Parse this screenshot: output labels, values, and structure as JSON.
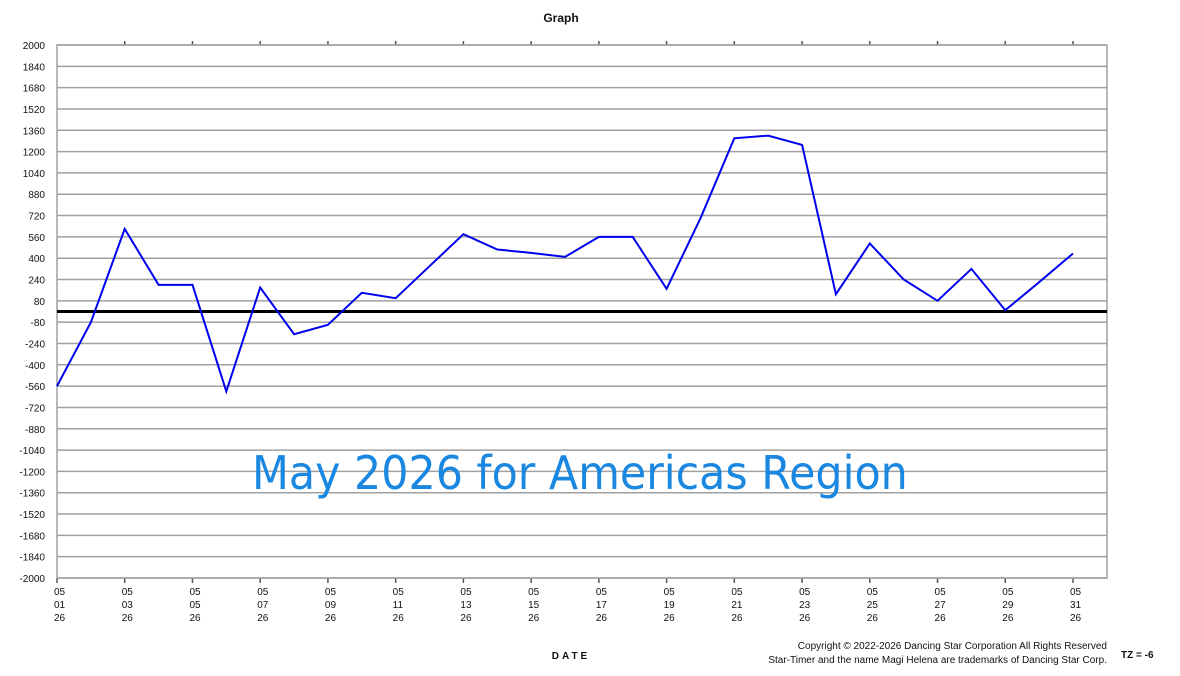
{
  "chart_data": {
    "type": "line",
    "title": "Graph",
    "xlabel": "DATE",
    "ylabel": "",
    "ylim": [
      -2000,
      2000
    ],
    "ytick_step": 160,
    "yticks": [
      2000,
      1840,
      1680,
      1520,
      1360,
      1200,
      1040,
      880,
      720,
      560,
      400,
      240,
      80,
      -80,
      -240,
      -400,
      -560,
      -720,
      -880,
      -1040,
      -1200,
      -1360,
      -1520,
      -1680,
      -1840,
      -2000
    ],
    "grid": true,
    "reference_line": 0,
    "x": [
      "05/01/26",
      "05/02/26",
      "05/03/26",
      "05/04/26",
      "05/05/26",
      "05/06/26",
      "05/07/26",
      "05/08/26",
      "05/09/26",
      "05/10/26",
      "05/11/26",
      "05/12/26",
      "05/13/26",
      "05/14/26",
      "05/15/26",
      "05/16/26",
      "05/17/26",
      "05/18/26",
      "05/19/26",
      "05/20/26",
      "05/21/26",
      "05/22/26",
      "05/23/26",
      "05/24/26",
      "05/25/26",
      "05/26/26",
      "05/27/26",
      "05/28/26",
      "05/29/26",
      "05/30/26",
      "05/31/26"
    ],
    "xtick_labels": [
      [
        "05",
        "01",
        "26"
      ],
      [
        "05",
        "03",
        "26"
      ],
      [
        "05",
        "05",
        "26"
      ],
      [
        "05",
        "07",
        "26"
      ],
      [
        "05",
        "09",
        "26"
      ],
      [
        "05",
        "11",
        "26"
      ],
      [
        "05",
        "13",
        "26"
      ],
      [
        "05",
        "15",
        "26"
      ],
      [
        "05",
        "17",
        "26"
      ],
      [
        "05",
        "19",
        "26"
      ],
      [
        "05",
        "21",
        "26"
      ],
      [
        "05",
        "23",
        "26"
      ],
      [
        "05",
        "25",
        "26"
      ],
      [
        "05",
        "27",
        "26"
      ],
      [
        "05",
        "29",
        "26"
      ],
      [
        "05",
        "31",
        "26"
      ]
    ],
    "series": [
      {
        "name": "Americas Region",
        "color": "#0000ee",
        "values": [
          -560,
          -80,
          620,
          200,
          200,
          -600,
          180,
          -170,
          -100,
          140,
          100,
          340,
          580,
          465,
          440,
          410,
          560,
          560,
          170,
          700,
          1300,
          1320,
          1250,
          130,
          510,
          240,
          80,
          320,
          10,
          220,
          435
        ]
      }
    ],
    "annotations": [
      "May 2026 for Americas Region"
    ]
  },
  "overlay_title": "May 2026 for Americas Region",
  "footer": {
    "copyright": "Copyright © 2022-2026 Dancing Star Corporation All Rights Reserved",
    "trademark": "Star-Timer and the name Magi Helena are trademarks of Dancing Star Corp.",
    "tz": "TZ = -6"
  },
  "colors": {
    "line": "#0000ee",
    "grid": "#a0a0a0",
    "zero_line": "#000000",
    "overlay_text": "#1a87e0"
  }
}
